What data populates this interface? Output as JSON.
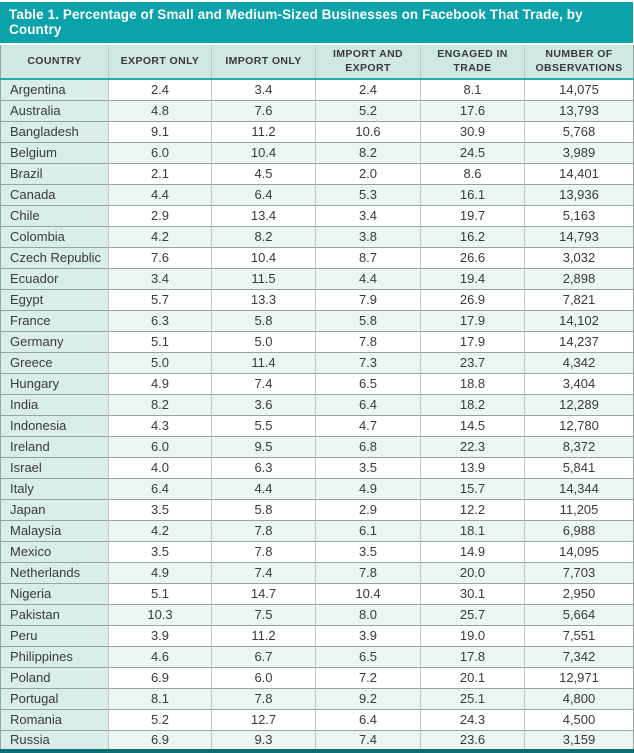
{
  "colors": {
    "title_bg": "#0ba3aa",
    "title_text": "#ffffff",
    "header_bg": "#cfe8e6",
    "country_col_bg": "#d9edeb",
    "alt_row_bg": "#ebf5f2",
    "header_underline": "#2aa9ae",
    "bottom_border": "#0d6f73",
    "text": "#3a3a3a"
  },
  "chart_data": {
    "type": "table",
    "title": "Table 1. Percentage of Small and Medium-Sized Businesses on Facebook That Trade, by Country",
    "columns": [
      "COUNTRY",
      "EXPORT ONLY",
      "IMPORT ONLY",
      "IMPORT AND EXPORT",
      "ENGAGED IN TRADE",
      "NUMBER OF OBSERVATIONS"
    ],
    "rows": [
      [
        "Argentina",
        "2.4",
        "3.4",
        "2.4",
        "8.1",
        "14,075"
      ],
      [
        "Australia",
        "4.8",
        "7.6",
        "5.2",
        "17.6",
        "13,793"
      ],
      [
        "Bangladesh",
        "9.1",
        "11.2",
        "10.6",
        "30.9",
        "5,768"
      ],
      [
        "Belgium",
        "6.0",
        "10.4",
        "8.2",
        "24.5",
        "3,989"
      ],
      [
        "Brazil",
        "2.1",
        "4.5",
        "2.0",
        "8.6",
        "14,401"
      ],
      [
        "Canada",
        "4.4",
        "6.4",
        "5.3",
        "16.1",
        "13,936"
      ],
      [
        "Chile",
        "2.9",
        "13.4",
        "3.4",
        "19.7",
        "5,163"
      ],
      [
        "Colombia",
        "4.2",
        "8.2",
        "3.8",
        "16.2",
        "14,793"
      ],
      [
        "Czech Republic",
        "7.6",
        "10.4",
        "8.7",
        "26.6",
        "3,032"
      ],
      [
        "Ecuador",
        "3.4",
        "11.5",
        "4.4",
        "19.4",
        "2,898"
      ],
      [
        "Egypt",
        "5.7",
        "13.3",
        "7.9",
        "26.9",
        "7,821"
      ],
      [
        "France",
        "6.3",
        "5.8",
        "5.8",
        "17.9",
        "14,102"
      ],
      [
        "Germany",
        "5.1",
        "5.0",
        "7.8",
        "17.9",
        "14,237"
      ],
      [
        "Greece",
        "5.0",
        "11.4",
        "7.3",
        "23.7",
        "4,342"
      ],
      [
        "Hungary",
        "4.9",
        "7.4",
        "6.5",
        "18.8",
        "3,404"
      ],
      [
        "India",
        "8.2",
        "3.6",
        "6.4",
        "18.2",
        "12,289"
      ],
      [
        "Indonesia",
        "4.3",
        "5.5",
        "4.7",
        "14.5",
        "12,780"
      ],
      [
        "Ireland",
        "6.0",
        "9.5",
        "6.8",
        "22.3",
        "8,372"
      ],
      [
        "Israel",
        "4.0",
        "6.3",
        "3.5",
        "13.9",
        "5,841"
      ],
      [
        "Italy",
        "6.4",
        "4.4",
        "4.9",
        "15.7",
        "14,344"
      ],
      [
        "Japan",
        "3.5",
        "5.8",
        "2.9",
        "12.2",
        "11,205"
      ],
      [
        "Malaysia",
        "4.2",
        "7.8",
        "6.1",
        "18.1",
        "6,988"
      ],
      [
        "Mexico",
        "3.5",
        "7.8",
        "3.5",
        "14.9",
        "14,095"
      ],
      [
        "Netherlands",
        "4.9",
        "7.4",
        "7.8",
        "20.0",
        "7,703"
      ],
      [
        "Nigeria",
        "5.1",
        "14.7",
        "10.4",
        "30.1",
        "2,950"
      ],
      [
        "Pakistan",
        "10.3",
        "7.5",
        "8.0",
        "25.7",
        "5,664"
      ],
      [
        "Peru",
        "3.9",
        "11.2",
        "3.9",
        "19.0",
        "7,551"
      ],
      [
        "Philippines",
        "4.6",
        "6.7",
        "6.5",
        "17.8",
        "7,342"
      ],
      [
        "Poland",
        "6.9",
        "6.0",
        "7.2",
        "20.1",
        "12,971"
      ],
      [
        "Portugal",
        "8.1",
        "7.8",
        "9.2",
        "25.1",
        "4,800"
      ],
      [
        "Romania",
        "5.2",
        "12.7",
        "6.4",
        "24.3",
        "4,500"
      ],
      [
        "Russia",
        "6.9",
        "9.3",
        "7.4",
        "23.6",
        "3,159"
      ]
    ]
  }
}
